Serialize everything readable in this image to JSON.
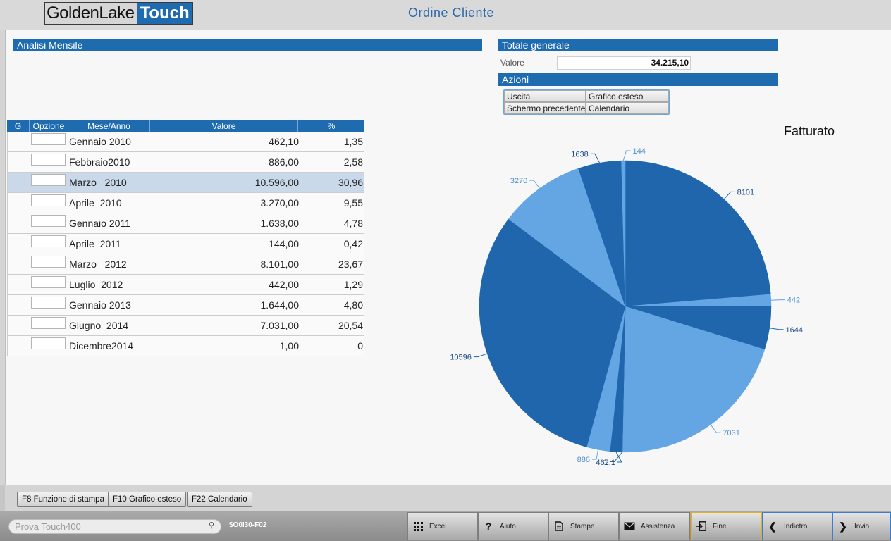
{
  "header": {
    "logo_golden": "GoldenLake",
    "logo_touch": "Touch",
    "title": "Ordine Cliente"
  },
  "analisi": {
    "title": "Analisi Mensile",
    "columns": [
      "G",
      "Opzione",
      "Mese/Anno",
      "Valore",
      "%"
    ],
    "rows": [
      {
        "mese": "Gennaio 2010",
        "valore": "462,10",
        "pct": "1,35"
      },
      {
        "mese": "Febbraio2010",
        "valore": "886,00",
        "pct": "2,58"
      },
      {
        "mese": "Marzo   2010",
        "valore": "10.596,00",
        "pct": "30,96"
      },
      {
        "mese": "Aprile  2010",
        "valore": "3.270,00",
        "pct": "9,55"
      },
      {
        "mese": "Gennaio 2011",
        "valore": "1.638,00",
        "pct": "4,78"
      },
      {
        "mese": "Aprile  2011",
        "valore": "144,00",
        "pct": "0,42"
      },
      {
        "mese": "Marzo   2012",
        "valore": "8.101,00",
        "pct": "23,67"
      },
      {
        "mese": "Luglio  2012",
        "valore": "442,00",
        "pct": "1,29"
      },
      {
        "mese": "Gennaio 2013",
        "valore": "1.644,00",
        "pct": "4,80"
      },
      {
        "mese": "Giugno  2014",
        "valore": "7.031,00",
        "pct": "20,54"
      },
      {
        "mese": "Dicembre2014",
        "valore": "1,00",
        "pct": "0"
      }
    ]
  },
  "totale": {
    "title": "Totale generale",
    "valore_label": "Valore",
    "valore": "34.215,10"
  },
  "azioni": {
    "title": "Azioni",
    "items": [
      "Uscita",
      "Grafico esteso",
      "Schermo precedente",
      "Calendario"
    ]
  },
  "chart_data": {
    "type": "pie",
    "title": "Fatturato",
    "slices": [
      {
        "label": "8101",
        "value": 8101,
        "color": "#1f66ad"
      },
      {
        "label": "442",
        "value": 442,
        "color": "#64a6e3"
      },
      {
        "label": "1644",
        "value": 1644,
        "color": "#1f66ad"
      },
      {
        "label": "7031",
        "value": 7031,
        "color": "#64a6e3"
      },
      {
        "label": "1",
        "value": 1,
        "color": "#1f66ad"
      },
      {
        "label": "462.1",
        "value": 462.1,
        "color": "#1f66ad"
      },
      {
        "label": "886",
        "value": 886,
        "color": "#64a6e3"
      },
      {
        "label": "10596",
        "value": 10596,
        "color": "#1f66ad"
      },
      {
        "label": "3270",
        "value": 3270,
        "color": "#64a6e3"
      },
      {
        "label": "1638",
        "value": 1638,
        "color": "#1f66ad"
      },
      {
        "label": "144",
        "value": 144,
        "color": "#64a6e3"
      }
    ]
  },
  "fkeys": [
    "F8 Funzione di stampa",
    "F10 Grafico esteso",
    "F22 Calendario"
  ],
  "bottom": {
    "search_placeholder": "Prova Touch400",
    "code": "$O0I30-F02",
    "buttons": [
      {
        "label": "Excel",
        "icon": "grid-icon"
      },
      {
        "label": "Aiuto",
        "icon": "question-icon"
      },
      {
        "label": "Stampe",
        "icon": "document-icon"
      },
      {
        "label": "Assistenza",
        "icon": "envelope-icon"
      },
      {
        "label": "Fine",
        "icon": "exit-icon"
      },
      {
        "label": "Indietro",
        "icon": "chevron-left-icon"
      },
      {
        "label": "Invio",
        "icon": "chevron-right-icon"
      }
    ]
  }
}
